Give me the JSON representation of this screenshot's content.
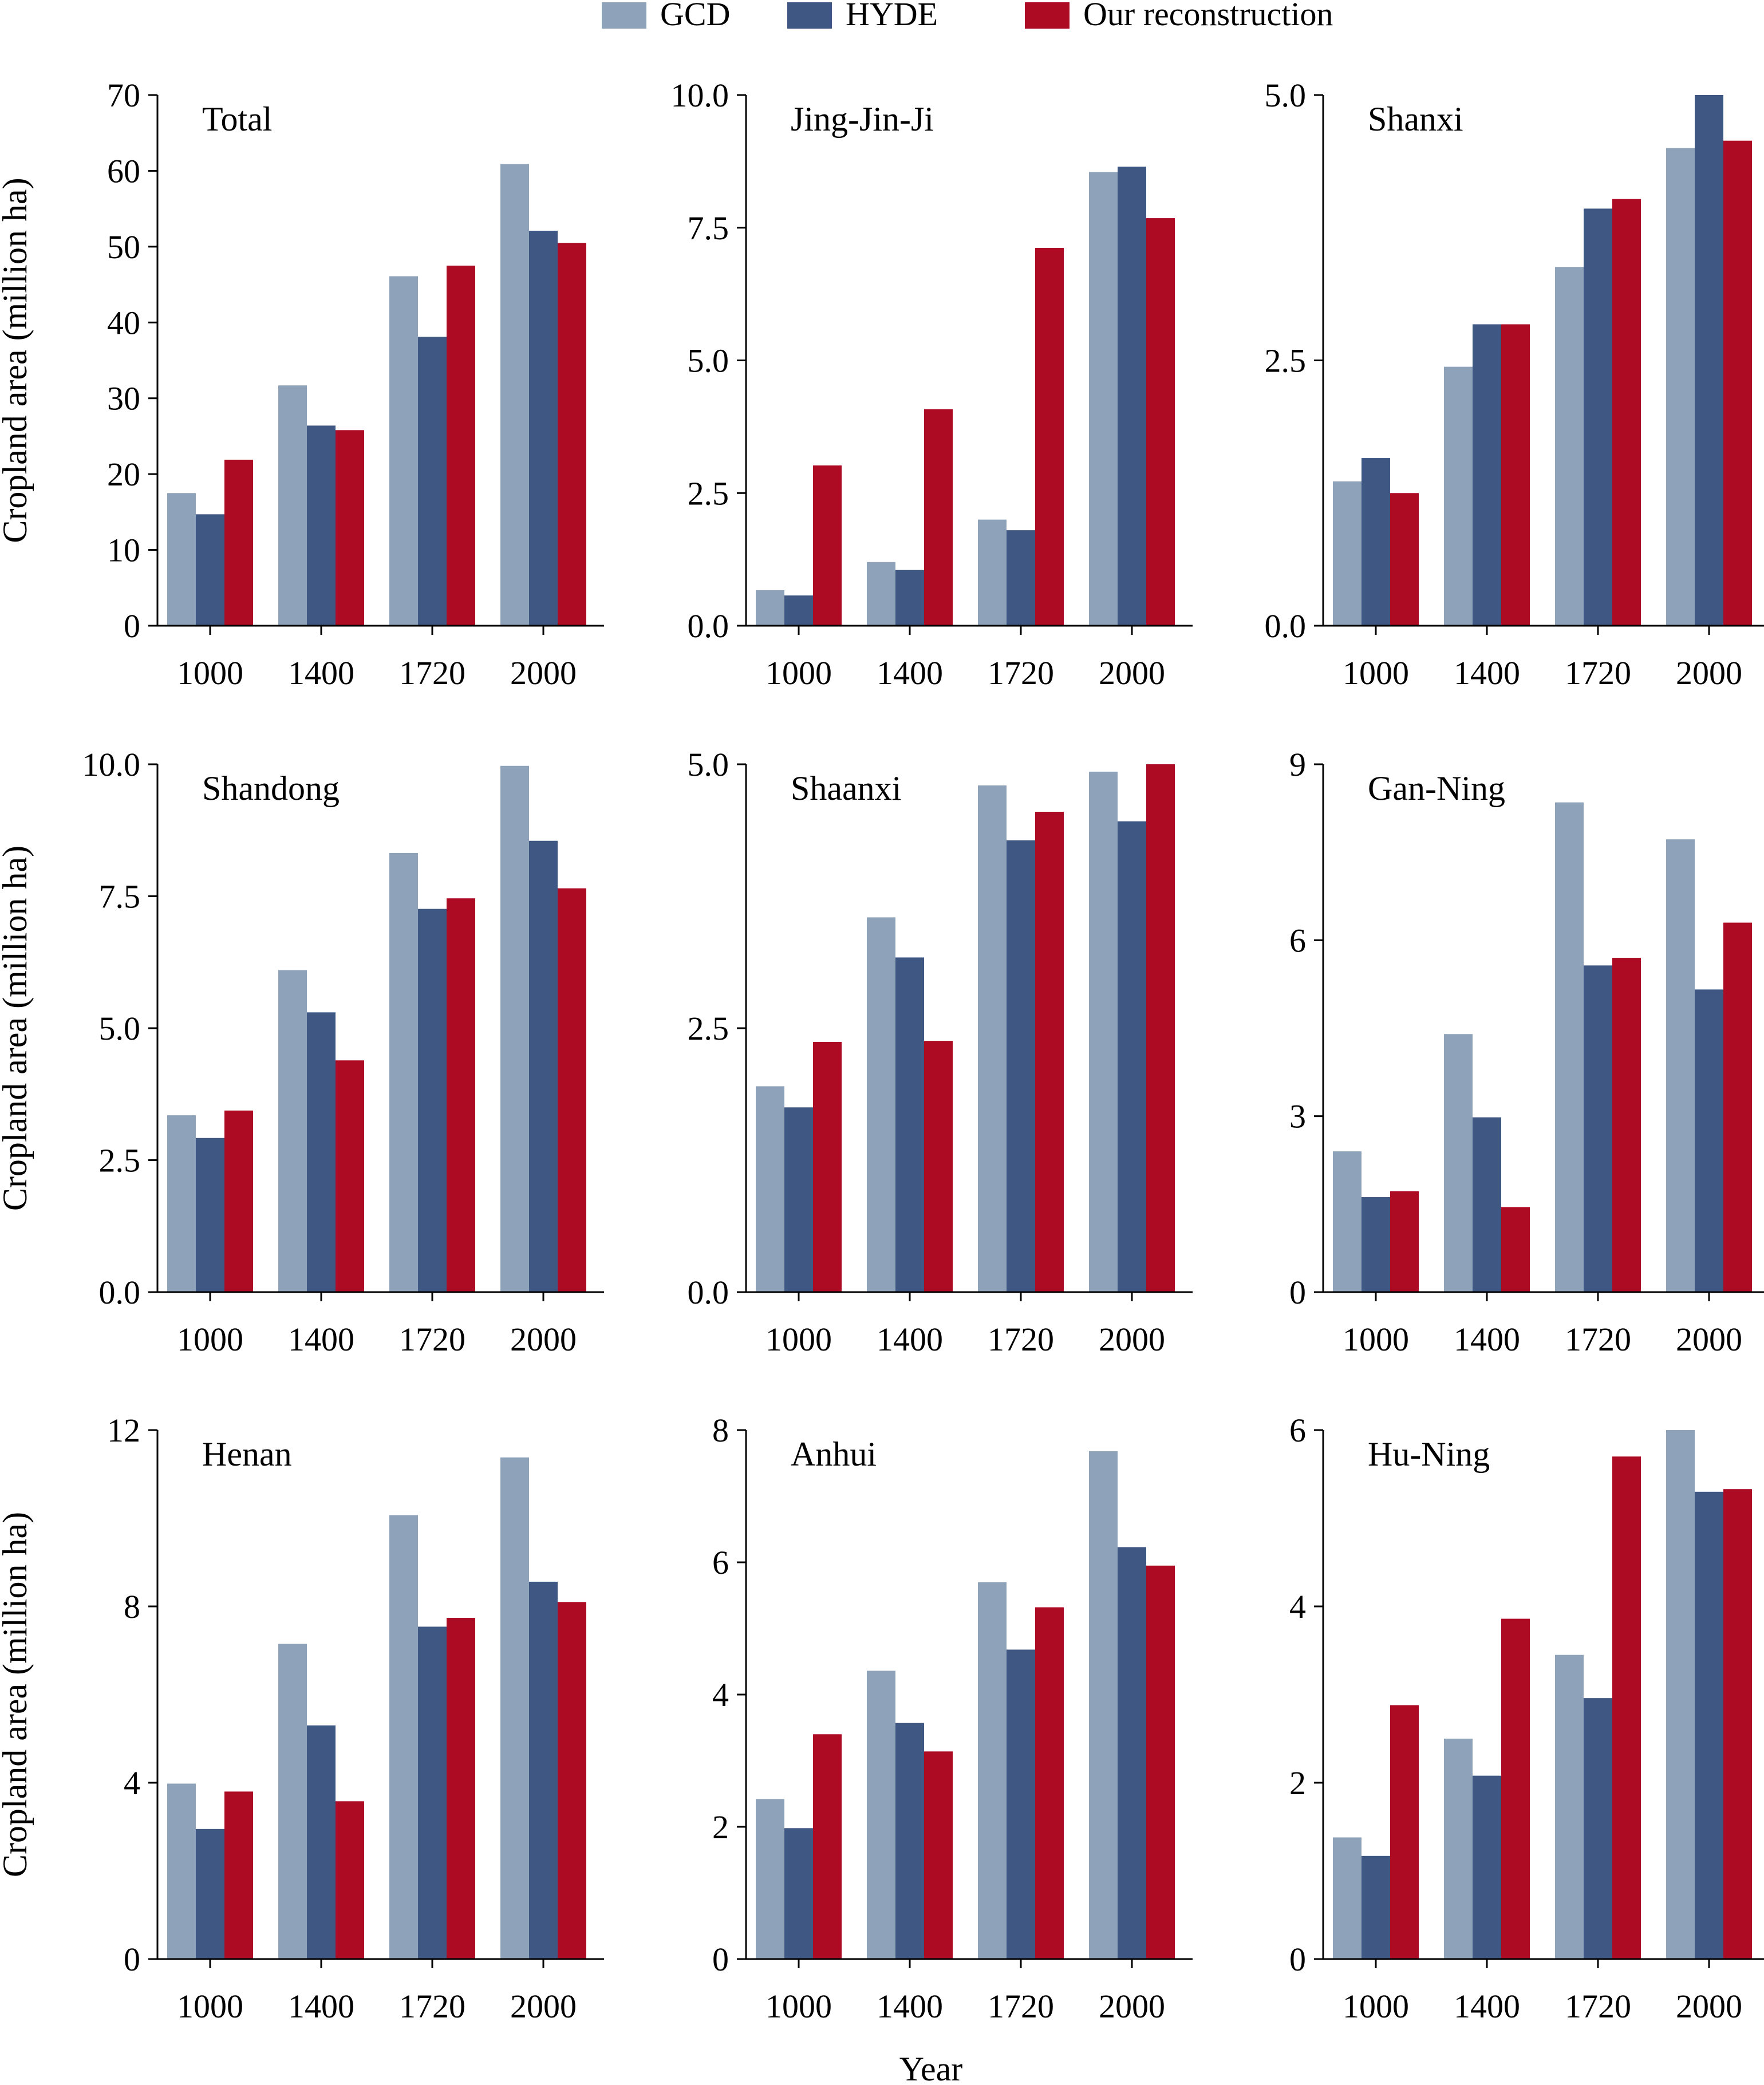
{
  "legend": [
    {
      "label": "GCD",
      "color": "#8ea3ba"
    },
    {
      "label": "HYDE",
      "color": "#3f5783"
    },
    {
      "label": "Our reconstruction",
      "color": "#ad0b23"
    }
  ],
  "shared_ylabel": "Cropland area (million ha)",
  "shared_xlabel": "Year",
  "chart_data": [
    {
      "type": "bar",
      "title": "Total",
      "categories": [
        "1000",
        "1400",
        "1720",
        "2000"
      ],
      "series": [
        {
          "name": "GCD",
          "values": [
            17.5,
            31.7,
            46.1,
            60.9
          ]
        },
        {
          "name": "HYDE",
          "values": [
            14.7,
            26.4,
            38.1,
            52.1
          ]
        },
        {
          "name": "Our reconstruction",
          "values": [
            21.9,
            25.8,
            47.5,
            50.5
          ]
        }
      ],
      "ylim": [
        0,
        70
      ],
      "yticks": [
        "0",
        "10",
        "20",
        "30",
        "40",
        "50",
        "60",
        "70"
      ],
      "yticks_values": [
        0,
        10,
        20,
        30,
        40,
        50,
        60,
        70
      ],
      "ylabel": "Cropland area (million ha)",
      "xlabel": ""
    },
    {
      "type": "bar",
      "title": "Jing-Jin-Ji",
      "categories": [
        "1000",
        "1400",
        "1720",
        "2000"
      ],
      "series": [
        {
          "name": "GCD",
          "values": [
            0.67,
            1.2,
            2.0,
            8.55
          ]
        },
        {
          "name": "HYDE",
          "values": [
            0.57,
            1.05,
            1.8,
            8.65
          ]
        },
        {
          "name": "Our reconstruction",
          "values": [
            3.02,
            4.08,
            7.12,
            7.68
          ]
        }
      ],
      "ylim": [
        0,
        10
      ],
      "yticks": [
        "0.0",
        "2.5",
        "5.0",
        "7.5",
        "10.0"
      ],
      "yticks_values": [
        0,
        2.5,
        5,
        7.5,
        10
      ],
      "ylabel": "",
      "xlabel": ""
    },
    {
      "type": "bar",
      "title": "Shanxi",
      "categories": [
        "1000",
        "1400",
        "1720",
        "2000"
      ],
      "series": [
        {
          "name": "GCD",
          "values": [
            1.36,
            2.44,
            3.38,
            4.5
          ]
        },
        {
          "name": "HYDE",
          "values": [
            1.58,
            2.84,
            3.93,
            5.0
          ]
        },
        {
          "name": "Our reconstruction",
          "values": [
            1.25,
            2.84,
            4.02,
            4.57
          ]
        }
      ],
      "ylim": [
        0,
        5
      ],
      "yticks": [
        "0.0",
        "2.5",
        "5.0"
      ],
      "yticks_values": [
        0,
        2.5,
        5
      ],
      "ylabel": "",
      "xlabel": ""
    },
    {
      "type": "bar",
      "title": "Shandong",
      "categories": [
        "1000",
        "1400",
        "1720",
        "2000"
      ],
      "series": [
        {
          "name": "GCD",
          "values": [
            3.35,
            6.1,
            8.32,
            9.97
          ]
        },
        {
          "name": "HYDE",
          "values": [
            2.92,
            5.3,
            7.26,
            8.55
          ]
        },
        {
          "name": "Our reconstruction",
          "values": [
            3.44,
            4.39,
            7.46,
            7.65
          ]
        }
      ],
      "ylim": [
        0,
        10
      ],
      "yticks": [
        "0.0",
        "2.5",
        "5.0",
        "7.5",
        "10.0"
      ],
      "yticks_values": [
        0,
        2.5,
        5,
        7.5,
        10
      ],
      "ylabel": "Cropland area (million ha)",
      "xlabel": ""
    },
    {
      "type": "bar",
      "title": "Shaanxi",
      "categories": [
        "1000",
        "1400",
        "1720",
        "2000"
      ],
      "series": [
        {
          "name": "GCD",
          "values": [
            1.95,
            3.55,
            4.8,
            4.93
          ]
        },
        {
          "name": "HYDE",
          "values": [
            1.75,
            3.17,
            4.28,
            4.46
          ]
        },
        {
          "name": "Our reconstruction",
          "values": [
            2.37,
            2.38,
            4.55,
            5.0
          ]
        }
      ],
      "ylim": [
        0,
        5
      ],
      "yticks": [
        "0.0",
        "2.5",
        "5.0"
      ],
      "yticks_values": [
        0,
        2.5,
        5
      ],
      "ylabel": "",
      "xlabel": ""
    },
    {
      "type": "bar",
      "title": "Gan-Ning",
      "categories": [
        "1000",
        "1400",
        "1720",
        "2000"
      ],
      "series": [
        {
          "name": "GCD",
          "values": [
            2.4,
            4.4,
            8.35,
            7.72
          ]
        },
        {
          "name": "HYDE",
          "values": [
            1.62,
            2.98,
            5.57,
            5.16
          ]
        },
        {
          "name": "Our reconstruction",
          "values": [
            1.72,
            1.45,
            5.7,
            6.3
          ]
        }
      ],
      "ylim": [
        0,
        9
      ],
      "yticks": [
        "0",
        "3",
        "6",
        "9"
      ],
      "yticks_values": [
        0,
        3,
        6,
        9
      ],
      "ylabel": "",
      "xlabel": ""
    },
    {
      "type": "bar",
      "title": "Henan",
      "categories": [
        "1000",
        "1400",
        "1720",
        "2000"
      ],
      "series": [
        {
          "name": "GCD",
          "values": [
            3.98,
            7.15,
            10.07,
            11.38
          ]
        },
        {
          "name": "HYDE",
          "values": [
            2.95,
            5.3,
            7.54,
            8.56
          ]
        },
        {
          "name": "Our reconstruction",
          "values": [
            3.8,
            3.58,
            7.74,
            8.1
          ]
        }
      ],
      "ylim": [
        0,
        12
      ],
      "yticks": [
        "0",
        "4",
        "8",
        "12"
      ],
      "yticks_values": [
        0,
        4,
        8,
        12
      ],
      "ylabel": "Cropland area (million ha)",
      "xlabel": ""
    },
    {
      "type": "bar",
      "title": "Anhui",
      "categories": [
        "1000",
        "1400",
        "1720",
        "2000"
      ],
      "series": [
        {
          "name": "GCD",
          "values": [
            2.42,
            4.36,
            5.7,
            7.68
          ]
        },
        {
          "name": "HYDE",
          "values": [
            1.98,
            3.57,
            4.68,
            6.23
          ]
        },
        {
          "name": "Our reconstruction",
          "values": [
            3.4,
            3.14,
            5.32,
            5.95
          ]
        }
      ],
      "ylim": [
        0,
        8
      ],
      "yticks": [
        "0",
        "2",
        "4",
        "6",
        "8"
      ],
      "yticks_values": [
        0,
        2,
        4,
        6,
        8
      ],
      "ylabel": "",
      "xlabel": "Year"
    },
    {
      "type": "bar",
      "title": "Hu-Ning",
      "categories": [
        "1000",
        "1400",
        "1720",
        "2000"
      ],
      "series": [
        {
          "name": "GCD",
          "values": [
            1.38,
            2.5,
            3.45,
            6.0
          ]
        },
        {
          "name": "HYDE",
          "values": [
            1.17,
            2.08,
            2.96,
            5.3
          ]
        },
        {
          "name": "Our reconstruction",
          "values": [
            2.88,
            3.86,
            5.7,
            5.33
          ]
        }
      ],
      "ylim": [
        0,
        6
      ],
      "yticks": [
        "0",
        "2",
        "4",
        "6"
      ],
      "yticks_values": [
        0,
        2,
        4,
        6
      ],
      "ylabel": "",
      "xlabel": ""
    }
  ]
}
